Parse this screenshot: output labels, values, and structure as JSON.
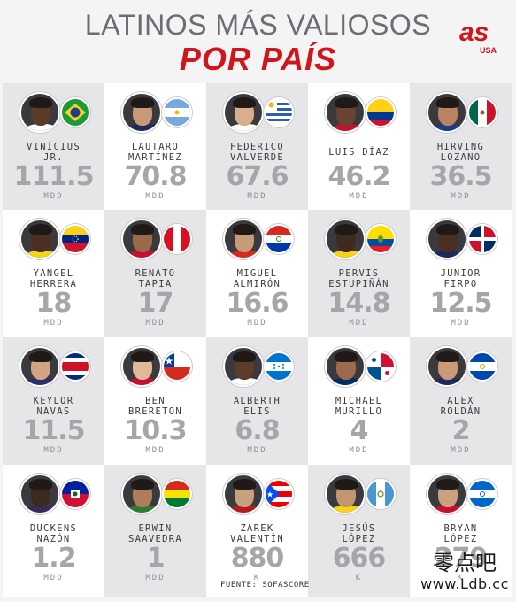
{
  "header": {
    "title_line1": "LATINOS MÁS VALIOSOS",
    "title_line2": "POR PAÍS",
    "logo_text": "as",
    "logo_sub": "USA"
  },
  "players": [
    {
      "name": "VINÍCIUS JR.",
      "value": "111.5",
      "unit": "MDD",
      "country": "Brasil",
      "flag_icon": "brazil-flag-icon"
    },
    {
      "name": "LAUTARO MARTÍNEZ",
      "value": "70.8",
      "unit": "MDD",
      "country": "Argentina",
      "flag_icon": "argentina-flag-icon"
    },
    {
      "name": "FEDERICO VALVERDE",
      "value": "67.6",
      "unit": "MDD",
      "country": "Uruguay",
      "flag_icon": "uruguay-flag-icon"
    },
    {
      "name": "LUIS DÍAZ",
      "value": "46.2",
      "unit": "MDD",
      "country": "Colombia",
      "flag_icon": "colombia-flag-icon"
    },
    {
      "name": "HIRVING LOZANO",
      "value": "36.5",
      "unit": "MDD",
      "country": "México",
      "flag_icon": "mexico-flag-icon"
    },
    {
      "name": "YANGEL HERRERA",
      "value": "18",
      "unit": "MDD",
      "country": "Venezuela",
      "flag_icon": "venezuela-flag-icon"
    },
    {
      "name": "RENATO TAPIA",
      "value": "17",
      "unit": "MDD",
      "country": "Perú",
      "flag_icon": "peru-flag-icon"
    },
    {
      "name": "MIGUEL ALMIRÓN",
      "value": "16.6",
      "unit": "MDD",
      "country": "Paraguay",
      "flag_icon": "paraguay-flag-icon"
    },
    {
      "name": "PERVIS ESTUPIÑÁN",
      "value": "14.8",
      "unit": "MDD",
      "country": "Ecuador",
      "flag_icon": "ecuador-flag-icon"
    },
    {
      "name": "JUNIOR FIRPO",
      "value": "12.5",
      "unit": "MDD",
      "country": "República Dominicana",
      "flag_icon": "dominican-republic-flag-icon"
    },
    {
      "name": "KEYLOR NAVAS",
      "value": "11.5",
      "unit": "MDD",
      "country": "Costa Rica",
      "flag_icon": "costa-rica-flag-icon"
    },
    {
      "name": "BEN BRERETON",
      "value": "10.3",
      "unit": "MDD",
      "country": "Chile",
      "flag_icon": "chile-flag-icon"
    },
    {
      "name": "ALBERTH ELIS",
      "value": "6.8",
      "unit": "MDD",
      "country": "Honduras",
      "flag_icon": "honduras-flag-icon"
    },
    {
      "name": "MICHAEL MURILLO",
      "value": "4",
      "unit": "MDD",
      "country": "Panamá",
      "flag_icon": "panama-flag-icon"
    },
    {
      "name": "ALEX ROLDÁN",
      "value": "2",
      "unit": "MDD",
      "country": "El Salvador",
      "flag_icon": "el-salvador-flag-icon"
    },
    {
      "name": "DUCKENS NAZÓN",
      "value": "1.2",
      "unit": "MDD",
      "country": "Haití",
      "flag_icon": "haiti-flag-icon"
    },
    {
      "name": "ERWIN SAAVEDRA",
      "value": "1",
      "unit": "MDD",
      "country": "Bolivia",
      "flag_icon": "bolivia-flag-icon"
    },
    {
      "name": "ZAREK VALENTÍN",
      "value": "880",
      "unit": "K",
      "country": "Puerto Rico",
      "flag_icon": "puerto-rico-flag-icon"
    },
    {
      "name": "JESÚS LÓPEZ",
      "value": "666",
      "unit": "K",
      "country": "Guatemala",
      "flag_icon": "guatemala-flag-icon"
    },
    {
      "name": "BRYAN LÓPEZ",
      "value": "279",
      "unit": "K",
      "country": "Nicaragua",
      "flag_icon": "nicaragua-flag-icon"
    }
  ],
  "source": "FUENTE: SOFASCORE",
  "watermark": {
    "text": "零点吧",
    "url": "www.Ldb.cc"
  },
  "colors": {
    "accent_red": "#d0151d",
    "title_gray": "#6c6c73",
    "value_gray": "#a5a5aa"
  }
}
